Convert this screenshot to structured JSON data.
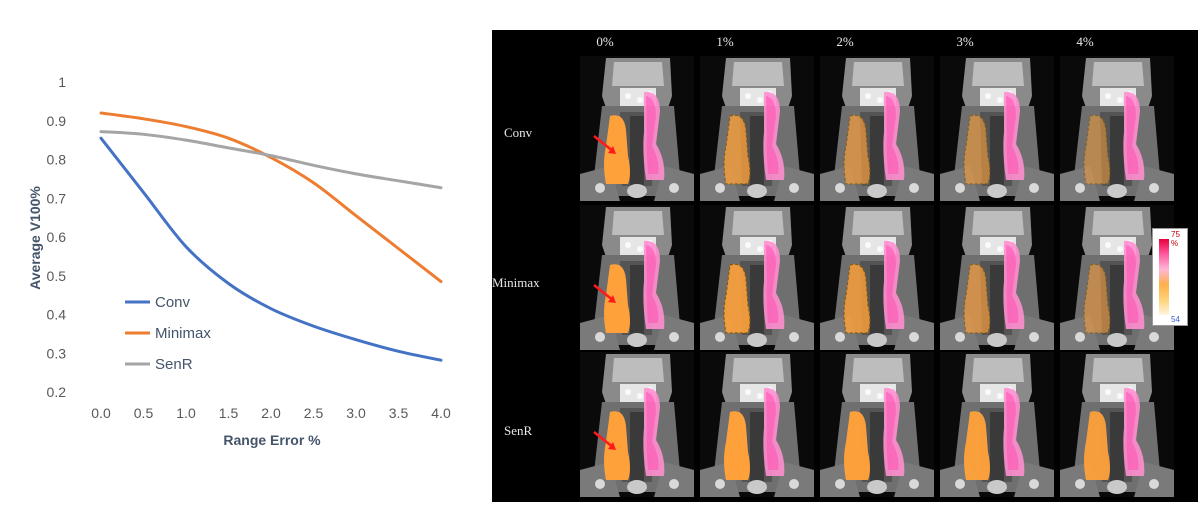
{
  "chart_data": {
    "type": "line",
    "x": [
      0.0,
      0.5,
      1.0,
      1.5,
      2.0,
      2.5,
      3.0,
      3.5,
      4.0
    ],
    "x_tick_labels": [
      "0.0",
      "0.5",
      "1.0",
      "1.5",
      "2.0",
      "2.5",
      "3.0",
      "3.5",
      "4.0"
    ],
    "y_tick_labels": [
      "0.2",
      "0.3",
      "0.4",
      "0.5",
      "0.6",
      "0.7",
      "0.8",
      "0.9",
      "1"
    ],
    "y_ticks": [
      0.2,
      0.3,
      0.4,
      0.5,
      0.6,
      0.7,
      0.8,
      0.9,
      1.0
    ],
    "xlabel": "Range Error %",
    "ylabel": "Average V100%",
    "xlim": [
      0.0,
      4.0
    ],
    "ylim": [
      0.2,
      1.0
    ],
    "grid": false,
    "legend_position": "bottom-left",
    "series": [
      {
        "name": "Conv",
        "color": "#4472c4",
        "values": [
          0.855,
          0.715,
          0.575,
          0.48,
          0.415,
          0.37,
          0.335,
          0.305,
          0.282
        ]
      },
      {
        "name": "Minimax",
        "color": "#ed7d31",
        "values": [
          0.92,
          0.905,
          0.885,
          0.855,
          0.805,
          0.74,
          0.655,
          0.57,
          0.485
        ]
      },
      {
        "name": "SenR",
        "color": "#a5a5a5",
        "values": [
          0.872,
          0.865,
          0.85,
          0.83,
          0.81,
          0.785,
          0.763,
          0.745,
          0.727
        ]
      }
    ]
  },
  "ct_figure": {
    "columns": [
      "0%",
      "1%",
      "2%",
      "3%",
      "4%"
    ],
    "rows": [
      "Conv",
      "Minimax",
      "SenR"
    ],
    "orange_coverage": [
      [
        1.0,
        0.7,
        0.55,
        0.45,
        0.35
      ],
      [
        1.0,
        0.85,
        0.75,
        0.55,
        0.4
      ],
      [
        1.0,
        1.0,
        0.98,
        0.95,
        0.92
      ]
    ],
    "colorbar": {
      "top_label": "75 %",
      "bottom_label": "54"
    }
  }
}
